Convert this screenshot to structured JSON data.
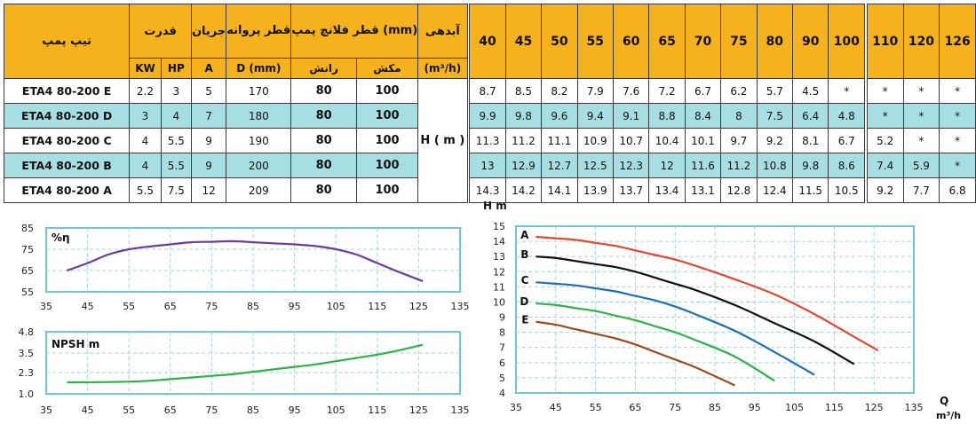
{
  "table": {
    "header_model": "تیپ پمپ",
    "header_power": "قدرت",
    "header_current": "جریان",
    "header_impeller": "قطر پروانه",
    "header_flange": "قطر فلانچ پمپ (mm)",
    "header_flow": "آبدهی",
    "sub_kw": "KW",
    "sub_hp": "HP",
    "sub_a": "A",
    "sub_d": "D (mm)",
    "sub_discharge": "رانش",
    "sub_suction": "مکش",
    "sub_flow_unit": "(m³/h)",
    "flows": [
      "40",
      "45",
      "50",
      "55",
      "60",
      "65",
      "70",
      "75",
      "80",
      "90",
      "100",
      "110",
      "120",
      "126"
    ],
    "h_label": "H ( m )",
    "rows": [
      {
        "model": "ETA4 80-200 E",
        "kw": "2.2",
        "hp": "3",
        "a": "5",
        "d": "170",
        "discharge": "80",
        "suction": "100",
        "heads": [
          "8.7",
          "8.5",
          "8.2",
          "7.9",
          "7.6",
          "7.2",
          "6.7",
          "6.2",
          "5.7",
          "4.5",
          "*",
          "*",
          "*",
          "*"
        ]
      },
      {
        "model": "ETA4 80-200 D",
        "kw": "3",
        "hp": "4",
        "a": "7",
        "d": "180",
        "discharge": "80",
        "suction": "100",
        "heads": [
          "9.9",
          "9.8",
          "9.6",
          "9.4",
          "9.1",
          "8.8",
          "8.4",
          "8",
          "7.5",
          "6.4",
          "4.8",
          "*",
          "*",
          "*"
        ]
      },
      {
        "model": "ETA4 80-200 C",
        "kw": "4",
        "hp": "5.5",
        "a": "9",
        "d": "190",
        "discharge": "80",
        "suction": "100",
        "heads": [
          "11.3",
          "11.2",
          "11.1",
          "10.9",
          "10.7",
          "10.4",
          "10.1",
          "9.7",
          "9.2",
          "8.1",
          "6.7",
          "5.2",
          "*",
          "*"
        ]
      },
      {
        "model": "ETA4 80-200 B",
        "kw": "4",
        "hp": "5.5",
        "a": "9",
        "d": "200",
        "discharge": "80",
        "suction": "100",
        "heads": [
          "13",
          "12.9",
          "12.7",
          "12.5",
          "12.3",
          "12",
          "11.6",
          "11.2",
          "10.8",
          "9.8",
          "8.6",
          "7.4",
          "5.9",
          "*"
        ]
      },
      {
        "model": "ETA4 80-200 A",
        "kw": "5.5",
        "hp": "7.5",
        "a": "12",
        "d": "209",
        "discharge": "80",
        "suction": "100",
        "heads": [
          "14.3",
          "14.2",
          "14.1",
          "13.9",
          "13.7",
          "13.4",
          "13.1",
          "12.8",
          "12.4",
          "11.5",
          "10.5",
          "9.2",
          "7.7",
          "6.8"
        ]
      }
    ]
  },
  "chart_data": [
    {
      "type": "line",
      "title": "%η",
      "xlim": [
        35,
        135
      ],
      "ylim": [
        55,
        85
      ],
      "xticks": [
        "35",
        "45",
        "55",
        "65",
        "75",
        "85",
        "95",
        "105",
        "115",
        "125",
        "135"
      ],
      "yticks": [
        "85",
        "75",
        "65",
        "55"
      ],
      "series": [
        {
          "color": "#6a3d9a",
          "x": [
            40,
            45,
            50,
            55,
            60,
            65,
            70,
            75,
            80,
            85,
            90,
            95,
            100,
            105,
            110,
            115,
            120,
            126
          ],
          "y": [
            65,
            68.5,
            72.5,
            75,
            76.3,
            77.3,
            78.3,
            78.5,
            78.8,
            78.3,
            77.8,
            77.3,
            76.5,
            75,
            72.5,
            68.5,
            64.5,
            60
          ]
        }
      ]
    },
    {
      "type": "line",
      "title": "NPSH m",
      "xlim": [
        35,
        135
      ],
      "ylim": [
        1.0,
        4.8
      ],
      "xticks": [
        "35",
        "45",
        "55",
        "65",
        "75",
        "85",
        "95",
        "105",
        "115",
        "125",
        "135"
      ],
      "yticks": [
        "4.8",
        "3.5",
        "2.3",
        "1.0"
      ],
      "series": [
        {
          "color": "#2db34a",
          "x": [
            40,
            50,
            55,
            60,
            65,
            70,
            75,
            80,
            85,
            90,
            95,
            100,
            105,
            110,
            115,
            120,
            126
          ],
          "y": [
            1.7,
            1.72,
            1.75,
            1.8,
            1.9,
            2.0,
            2.1,
            2.2,
            2.35,
            2.5,
            2.65,
            2.8,
            3.0,
            3.2,
            3.4,
            3.65,
            4.0
          ]
        }
      ]
    },
    {
      "type": "line",
      "ylabel": "H m",
      "xlabel_q": "Q",
      "xlabel_unit": "m³/h",
      "xlim": [
        35,
        135
      ],
      "ylim": [
        4,
        15
      ],
      "xticks": [
        "35",
        "45",
        "55",
        "65",
        "75",
        "85",
        "95",
        "105",
        "115",
        "125",
        "135"
      ],
      "yticks": [
        "15",
        "14",
        "13",
        "12",
        "11",
        "10",
        "9",
        "8",
        "7",
        "6",
        "5",
        "4"
      ],
      "series": [
        {
          "name": "A",
          "color": "#e3482f",
          "x": [
            40,
            45,
            50,
            55,
            60,
            65,
            70,
            75,
            80,
            90,
            100,
            110,
            120,
            126
          ],
          "y": [
            14.3,
            14.2,
            14.1,
            13.9,
            13.7,
            13.4,
            13.1,
            12.8,
            12.4,
            11.5,
            10.5,
            9.2,
            7.7,
            6.8
          ]
        },
        {
          "name": "B",
          "color": "#111111",
          "x": [
            40,
            45,
            50,
            55,
            60,
            65,
            70,
            75,
            80,
            90,
            100,
            110,
            120
          ],
          "y": [
            13,
            12.9,
            12.7,
            12.5,
            12.3,
            12,
            11.6,
            11.2,
            10.8,
            9.8,
            8.6,
            7.4,
            5.9
          ]
        },
        {
          "name": "C",
          "color": "#1f6fb3",
          "x": [
            40,
            45,
            50,
            55,
            60,
            65,
            70,
            75,
            80,
            90,
            100,
            110
          ],
          "y": [
            11.3,
            11.2,
            11.1,
            10.9,
            10.7,
            10.4,
            10.1,
            9.7,
            9.2,
            8.1,
            6.7,
            5.2
          ]
        },
        {
          "name": "D",
          "color": "#2db34a",
          "x": [
            40,
            45,
            50,
            55,
            60,
            65,
            70,
            75,
            80,
            90,
            100
          ],
          "y": [
            9.9,
            9.8,
            9.6,
            9.4,
            9.1,
            8.8,
            8.4,
            8,
            7.5,
            6.4,
            4.8
          ]
        },
        {
          "name": "E",
          "color": "#9c4a1a",
          "x": [
            40,
            45,
            50,
            55,
            60,
            65,
            70,
            75,
            80,
            90
          ],
          "y": [
            8.7,
            8.5,
            8.2,
            7.9,
            7.6,
            7.2,
            6.7,
            6.2,
            5.7,
            4.5
          ]
        }
      ]
    }
  ]
}
